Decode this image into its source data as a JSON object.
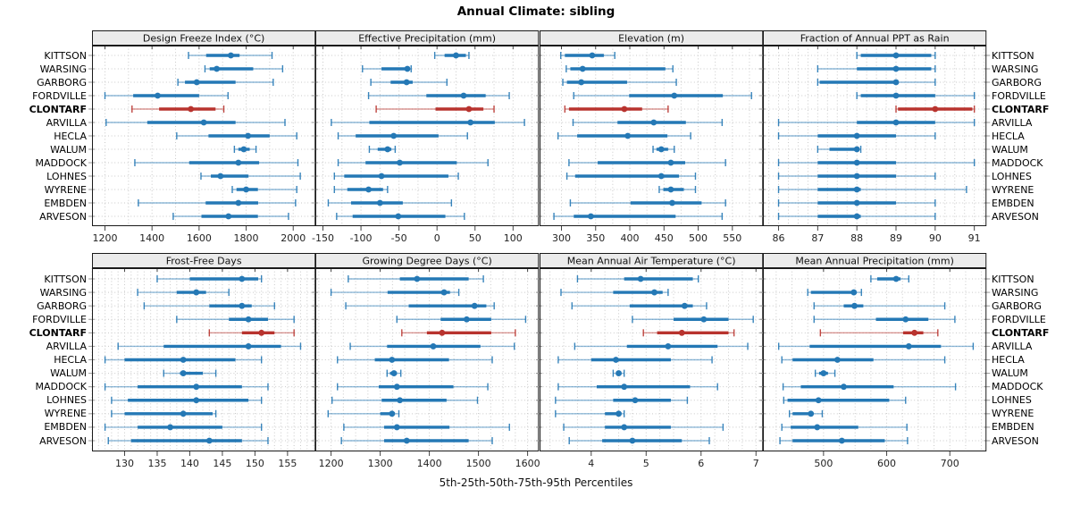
{
  "title": "Annual Climate: sibling",
  "x_axis_caption": "5th-25th-50th-75th-95th Percentiles",
  "highlight_station": "CLONTARF",
  "colors": {
    "series": "#2478b5",
    "highlight": "#b8332e",
    "strip_bg": "#ebebeb",
    "panel_border": "#1a1a1a",
    "grid": "#c9c9c9",
    "tick": "#444444",
    "text": "#000000"
  },
  "chart_data": {
    "type": "scatter",
    "subtype": "dot-whisker-percentiles",
    "percentile_levels": [
      5,
      25,
      50,
      75,
      95
    ],
    "legend_caption": "5th-25th-50th-75th-95th Percentiles",
    "categories": [
      "KITTSON",
      "WARSING",
      "GARBORG",
      "FORDVILLE",
      "CLONTARF",
      "ARVILLA",
      "HECLA",
      "WALUM",
      "MADDOCK",
      "LOHNES",
      "WYRENE",
      "EMBDEN",
      "ARVESON"
    ],
    "highlight": "CLONTARF",
    "panels": [
      {
        "title": "Design Freeze Index (°C)",
        "row": 0,
        "col": 0,
        "xlim": [
          1145,
          2095
        ],
        "ticks": [
          1200,
          1400,
          1600,
          1800,
          2000
        ],
        "grid_step": 100,
        "values": [
          [
            1555,
            1630,
            1735,
            1772,
            1910
          ],
          [
            1625,
            1645,
            1675,
            1830,
            1955
          ],
          [
            1510,
            1540,
            1590,
            1755,
            1915
          ],
          [
            1200,
            1320,
            1424,
            1600,
            1723
          ],
          [
            1315,
            1430,
            1565,
            1670,
            1705
          ],
          [
            1205,
            1380,
            1620,
            1755,
            1965
          ],
          [
            1505,
            1640,
            1808,
            1900,
            2015
          ],
          [
            1750,
            1767,
            1790,
            1815,
            1842
          ],
          [
            1327,
            1558,
            1767,
            1855,
            2020
          ],
          [
            1608,
            1650,
            1691,
            1810,
            2030
          ],
          [
            1741,
            1759,
            1800,
            1850,
            2015
          ],
          [
            1342,
            1628,
            1767,
            1851,
            2010
          ],
          [
            1490,
            1610,
            1725,
            1850,
            1980
          ]
        ]
      },
      {
        "title": "Effective Precipitation (mm)",
        "row": 0,
        "col": 1,
        "xlim": [
          -160,
          134
        ],
        "ticks": [
          -150,
          -100,
          -50,
          0,
          50,
          100
        ],
        "grid_step": 25,
        "values": [
          [
            -3,
            10,
            25,
            38,
            42
          ],
          [
            -98,
            -73,
            -39,
            -36,
            -34
          ],
          [
            -87,
            -61,
            -40,
            -32,
            13
          ],
          [
            -90,
            -14,
            35,
            64,
            95
          ],
          [
            -80,
            -2,
            42,
            61,
            75
          ],
          [
            -139,
            -89,
            44,
            76,
            115
          ],
          [
            -130,
            -107,
            -57,
            2,
            40
          ],
          [
            -89,
            -78,
            -65,
            -60,
            -55
          ],
          [
            -130,
            -94,
            -49,
            26,
            67
          ],
          [
            -135,
            -122,
            -73,
            15,
            28
          ],
          [
            -135,
            -118,
            -90,
            -71,
            -65
          ],
          [
            -143,
            -113,
            -75,
            -45,
            19
          ],
          [
            -132,
            -111,
            -51,
            11,
            36
          ]
        ]
      },
      {
        "title": "Elevation (m)",
        "row": 0,
        "col": 2,
        "xlim": [
          268,
          595
        ],
        "ticks": [
          300,
          350,
          400,
          450,
          500,
          550
        ],
        "grid_step": 25,
        "values": [
          [
            299,
            305,
            345,
            362,
            378
          ],
          [
            307,
            313,
            331,
            452,
            463
          ],
          [
            302,
            308,
            329,
            396,
            468
          ],
          [
            318,
            399,
            465,
            536,
            578
          ],
          [
            305,
            311,
            392,
            418,
            456
          ],
          [
            317,
            382,
            435,
            482,
            535
          ],
          [
            295,
            323,
            397,
            455,
            489
          ],
          [
            434,
            439,
            446,
            456,
            465
          ],
          [
            311,
            353,
            460,
            481,
            540
          ],
          [
            308,
            320,
            446,
            472,
            496
          ],
          [
            443,
            449,
            460,
            479,
            496
          ],
          [
            313,
            401,
            462,
            505,
            540
          ],
          [
            289,
            318,
            343,
            467,
            535
          ]
        ]
      },
      {
        "title": "Fraction of Annual PPT as Rain",
        "row": 0,
        "col": 3,
        "xlim": [
          85.6,
          91.31
        ],
        "ticks": [
          86,
          87,
          88,
          89,
          90,
          91
        ],
        "grid_step": 0.25,
        "values": [
          [
            88,
            88.1,
            89,
            89.9,
            90
          ],
          [
            87,
            88,
            89,
            89.9,
            90
          ],
          [
            87,
            87.05,
            89,
            89.05,
            90
          ],
          [
            88,
            88.1,
            89,
            90,
            91
          ],
          [
            89,
            89.05,
            90,
            90.95,
            91
          ],
          [
            86,
            88,
            89,
            90,
            91
          ],
          [
            86,
            87,
            88,
            89,
            90
          ],
          [
            87,
            87.3,
            88,
            88.05,
            88.1
          ],
          [
            86,
            87,
            88,
            89,
            91
          ],
          [
            86,
            87,
            88,
            89,
            90
          ],
          [
            86,
            87,
            88,
            88.1,
            90.8
          ],
          [
            86,
            87,
            88,
            89,
            90
          ],
          [
            86,
            87,
            88,
            88.1,
            90
          ]
        ]
      },
      {
        "title": "Frost-Free Days",
        "row": 1,
        "col": 0,
        "xlim": [
          125,
          159.3
        ],
        "ticks": [
          130,
          135,
          140,
          145,
          150,
          155
        ],
        "grid_step": 1,
        "values": [
          [
            135,
            140,
            148,
            150.5,
            151
          ],
          [
            132,
            138,
            141,
            142.5,
            146
          ],
          [
            133,
            143,
            148,
            149.5,
            153
          ],
          [
            138,
            146,
            149,
            152,
            156
          ],
          [
            143,
            148,
            151,
            153,
            156
          ],
          [
            129,
            136,
            149,
            154,
            157
          ],
          [
            127,
            130,
            139,
            147,
            151
          ],
          [
            136,
            138.5,
            139,
            142,
            144
          ],
          [
            127,
            132,
            141,
            148,
            152
          ],
          [
            128,
            130.5,
            141,
            149,
            151
          ],
          [
            128,
            130,
            139,
            143.5,
            144
          ],
          [
            127,
            132,
            137,
            145,
            151
          ],
          [
            127.5,
            131,
            143,
            148,
            152
          ]
        ]
      },
      {
        "title": "Growing Degree Days (°C)",
        "row": 1,
        "col": 1,
        "xlim": [
          1168,
          1623
        ],
        "ticks": [
          1200,
          1300,
          1400,
          1500,
          1600
        ],
        "grid_step": 25,
        "values": [
          [
            1235,
            1340,
            1375,
            1480,
            1510
          ],
          [
            1200,
            1315,
            1430,
            1442,
            1460
          ],
          [
            1230,
            1358,
            1492,
            1516,
            1532
          ],
          [
            1334,
            1423,
            1476,
            1526,
            1596
          ],
          [
            1344,
            1395,
            1426,
            1526,
            1575
          ],
          [
            1239,
            1314,
            1408,
            1504,
            1573
          ],
          [
            1213,
            1289,
            1324,
            1440,
            1528
          ],
          [
            1314,
            1320,
            1328,
            1334,
            1342
          ],
          [
            1213,
            1297,
            1334,
            1449,
            1519
          ],
          [
            1202,
            1303,
            1340,
            1435,
            1498
          ],
          [
            1194,
            1300,
            1324,
            1330,
            1338
          ],
          [
            1226,
            1308,
            1334,
            1441,
            1563
          ],
          [
            1221,
            1308,
            1354,
            1480,
            1528
          ]
        ]
      },
      {
        "title": "Mean Annual Air Temperature (°C)",
        "row": 1,
        "col": 2,
        "xlim": [
          3.06,
          7.13
        ],
        "ticks": [
          4,
          5,
          6,
          7
        ],
        "grid_step": 0.25,
        "values": [
          [
            3.75,
            4.6,
            4.9,
            5.85,
            5.95
          ],
          [
            3.45,
            4.4,
            5.15,
            5.3,
            5.4
          ],
          [
            3.65,
            4.7,
            5.7,
            5.85,
            6.1
          ],
          [
            4.75,
            5.5,
            6.05,
            6.5,
            6.95
          ],
          [
            4.95,
            5.2,
            5.65,
            6.5,
            6.6
          ],
          [
            3.7,
            4.65,
            5.4,
            6.3,
            6.85
          ],
          [
            3.4,
            4.0,
            4.45,
            5.45,
            6.2
          ],
          [
            4.4,
            4.45,
            4.5,
            4.55,
            4.6
          ],
          [
            3.4,
            4.1,
            4.6,
            5.8,
            6.3
          ],
          [
            3.35,
            4.4,
            4.8,
            5.45,
            5.75
          ],
          [
            3.35,
            4.25,
            4.5,
            4.55,
            4.6
          ],
          [
            3.5,
            4.25,
            4.6,
            5.45,
            6.4
          ],
          [
            3.6,
            4.2,
            4.75,
            5.65,
            6.15
          ]
        ]
      },
      {
        "title": "Mean Annual Precipitation (mm)",
        "row": 1,
        "col": 3,
        "xlim": [
          404,
          758
        ],
        "ticks": [
          500,
          600,
          700
        ],
        "grid_step": 25,
        "values": [
          [
            575,
            585,
            615,
            622,
            635
          ],
          [
            475,
            480,
            548,
            552,
            560
          ],
          [
            485,
            532,
            549,
            563,
            692
          ],
          [
            485,
            583,
            630,
            666,
            708
          ],
          [
            495,
            626,
            644,
            658,
            681
          ],
          [
            429,
            478,
            635,
            686,
            737
          ],
          [
            434,
            451,
            522,
            579,
            692
          ],
          [
            487,
            493,
            500,
            507,
            518
          ],
          [
            436,
            464,
            532,
            611,
            709
          ],
          [
            437,
            443,
            492,
            604,
            630
          ],
          [
            446,
            451,
            480,
            482,
            498
          ],
          [
            434,
            448,
            490,
            555,
            632
          ],
          [
            431,
            451,
            529,
            597,
            633
          ]
        ]
      }
    ]
  }
}
